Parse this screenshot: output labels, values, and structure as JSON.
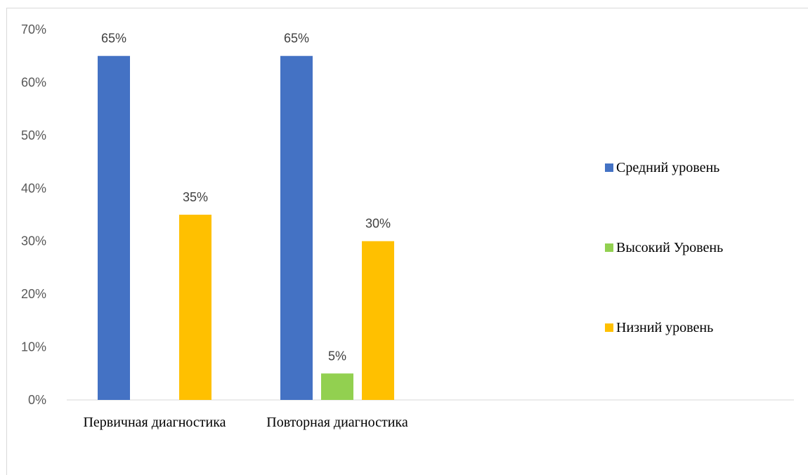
{
  "chart_data": {
    "type": "bar",
    "categories": [
      "Первичная диагностика",
      "Повторная диагностика"
    ],
    "series": [
      {
        "name": "Средний уровень",
        "values": [
          65,
          65
        ],
        "labels": [
          "65%",
          "65%"
        ],
        "color": "#4472c4"
      },
      {
        "name": "Высокий Уровень",
        "values": [
          0,
          5
        ],
        "labels": [
          "",
          "5%"
        ],
        "color": "#92d050"
      },
      {
        "name": "Низний уровень",
        "values": [
          35,
          30
        ],
        "labels": [
          "35%",
          "30%"
        ],
        "color": "#ffc000"
      }
    ],
    "ylim": [
      0,
      70
    ],
    "yticks": [
      "0%",
      "10%",
      "20%",
      "30%",
      "40%",
      "50%",
      "60%",
      "70%"
    ],
    "ytick_values": [
      0,
      10,
      20,
      30,
      40,
      50,
      60,
      70
    ],
    "grid": false,
    "legend_position": "right",
    "title": "",
    "xlabel": "",
    "ylabel": ""
  }
}
